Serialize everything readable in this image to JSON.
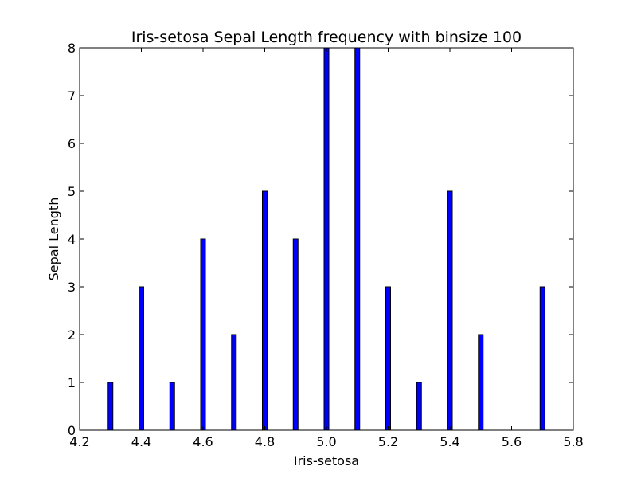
{
  "chart_data": {
    "type": "bar",
    "title": "Iris-setosa Sepal Length frequency with binsize 100",
    "xlabel": "Iris-setosa",
    "ylabel": "Sepal Length",
    "xlim": [
      4.2,
      5.8
    ],
    "ylim": [
      0,
      8
    ],
    "x_ticks": [
      "4.2",
      "4.4",
      "4.6",
      "4.8",
      "5.0",
      "5.2",
      "5.4",
      "5.6",
      "5.8"
    ],
    "y_ticks": [
      "0",
      "1",
      "2",
      "3",
      "4",
      "5",
      "6",
      "7",
      "8"
    ],
    "grid": false,
    "bar_color": "#0000ff",
    "series": [
      {
        "x": [
          4.3,
          4.4,
          4.5,
          4.6,
          4.7,
          4.8,
          4.9,
          5.0,
          5.1,
          5.2,
          5.3,
          5.4,
          5.5,
          5.7
        ],
        "values": [
          1,
          3,
          1,
          4,
          2,
          5,
          4,
          8,
          8,
          3,
          1,
          5,
          2,
          3
        ]
      }
    ]
  }
}
